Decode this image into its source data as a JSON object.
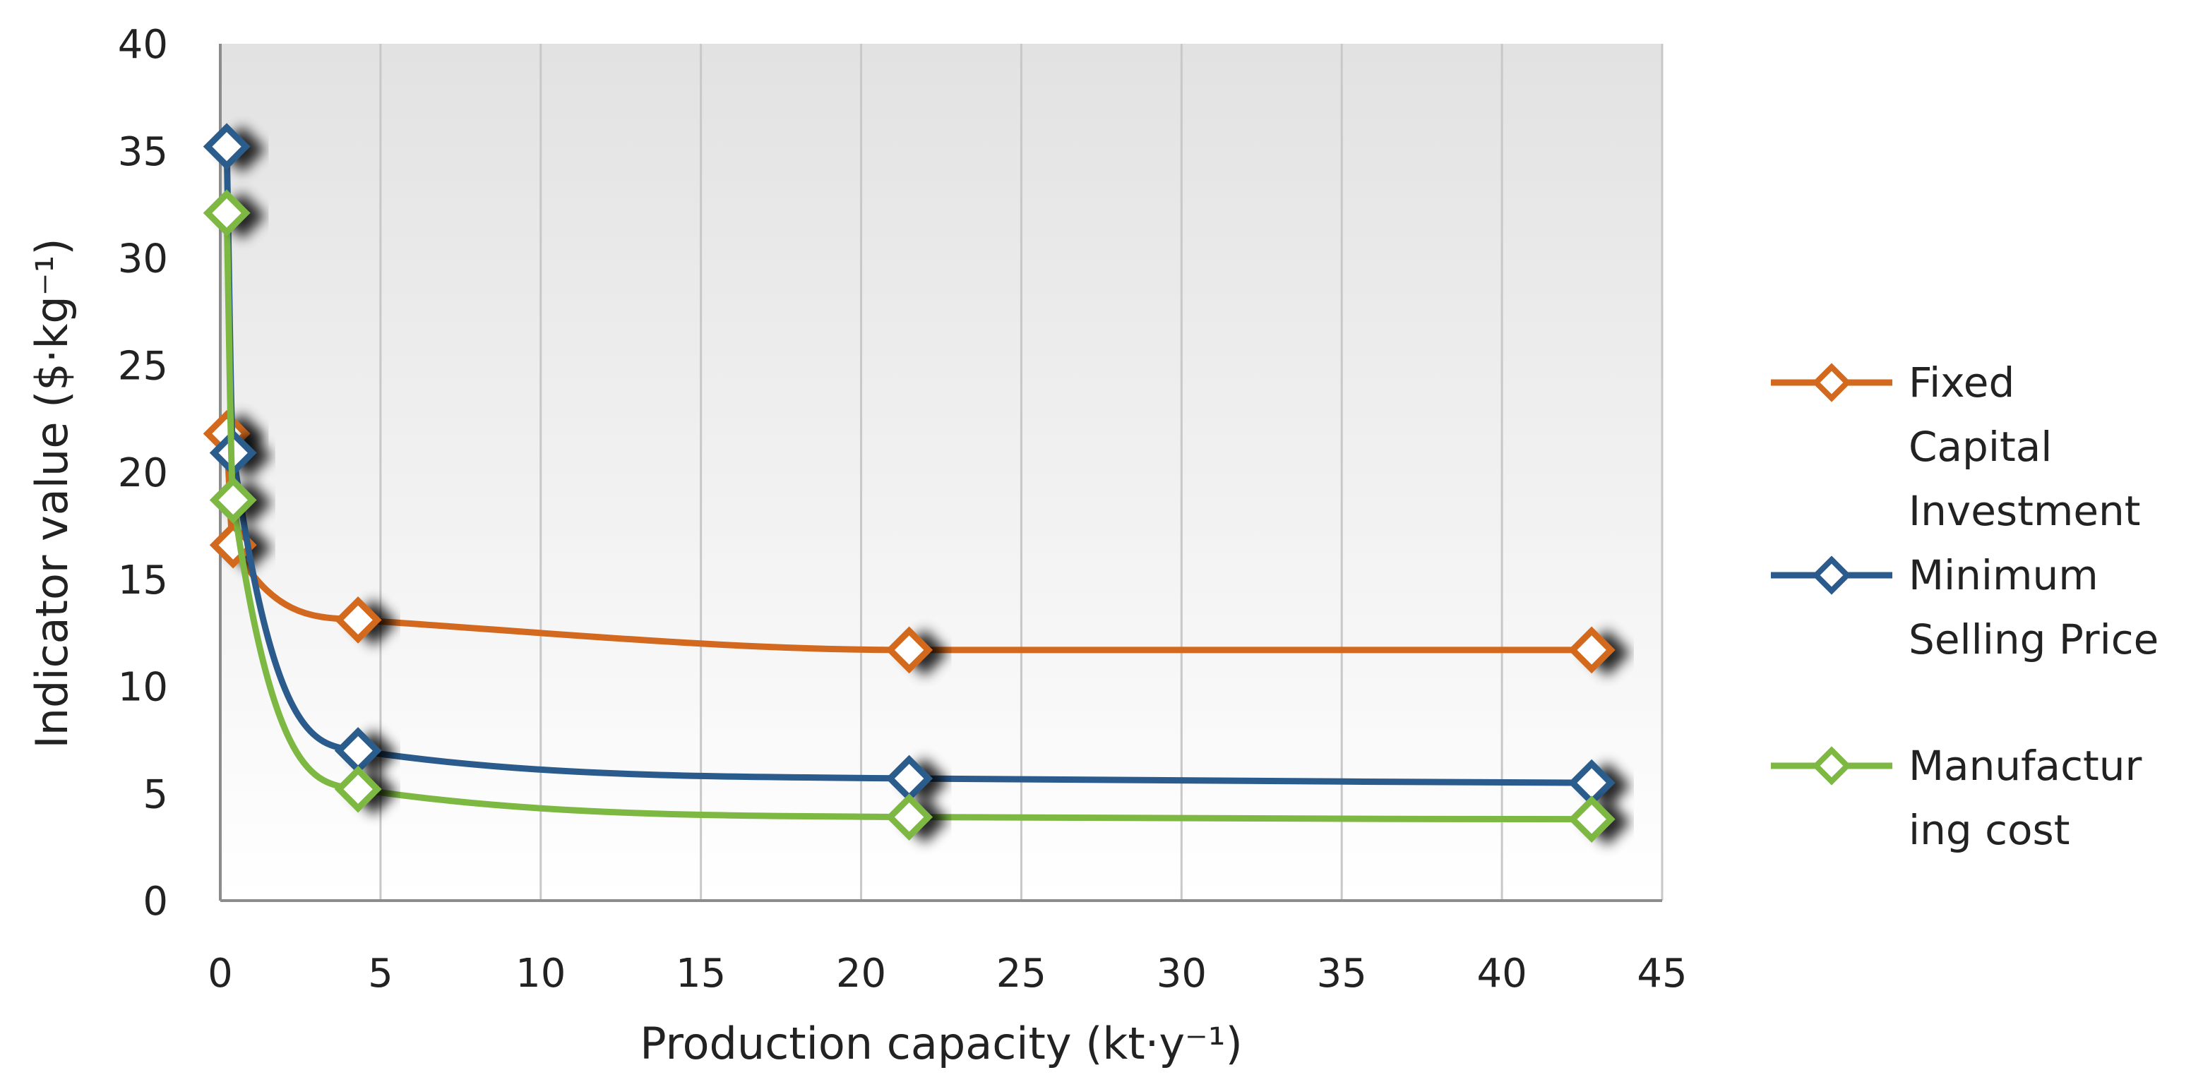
{
  "chart_data": {
    "type": "line",
    "title": "",
    "xlabel": "Production capacity (kt·y⁻¹)",
    "ylabel": "Indicator value ($·kg⁻¹)",
    "xlim": [
      0,
      45
    ],
    "ylim": [
      0,
      40
    ],
    "xticks": [
      "0",
      "5",
      "10",
      "15",
      "20",
      "25",
      "30",
      "35",
      "40",
      "45"
    ],
    "yticks": [
      "0",
      "5",
      "10",
      "15",
      "20",
      "25",
      "30",
      "35",
      "40"
    ],
    "grid": "vertical",
    "legend_position": "right",
    "series": [
      {
        "name": "Fixed Capital Investment",
        "legend_lines": [
          "Fixed",
          "Capital",
          "Investment"
        ],
        "color": "#D2691E",
        "marker": "diamond",
        "smooth": true,
        "x": [
          0.2,
          0.4,
          4.3,
          21.5,
          42.8
        ],
        "y": [
          21.8,
          16.6,
          13.1,
          11.7,
          11.7
        ]
      },
      {
        "name": "Minimum Selling Price",
        "legend_lines": [
          "Minimum",
          "Selling Price"
        ],
        "color": "#2A5B8C",
        "marker": "diamond",
        "smooth": true,
        "x": [
          0.2,
          0.4,
          4.3,
          21.5,
          42.8
        ],
        "y": [
          35.2,
          20.9,
          7.0,
          5.7,
          5.5
        ]
      },
      {
        "name": "Manufacturing cost",
        "legend_lines": [
          "Manufactur",
          "ing cost"
        ],
        "color": "#7CB842",
        "marker": "diamond",
        "smooth": true,
        "x": [
          0.2,
          0.4,
          4.3,
          21.5,
          42.8
        ],
        "y": [
          32.1,
          18.7,
          5.2,
          3.9,
          3.8
        ]
      }
    ]
  }
}
